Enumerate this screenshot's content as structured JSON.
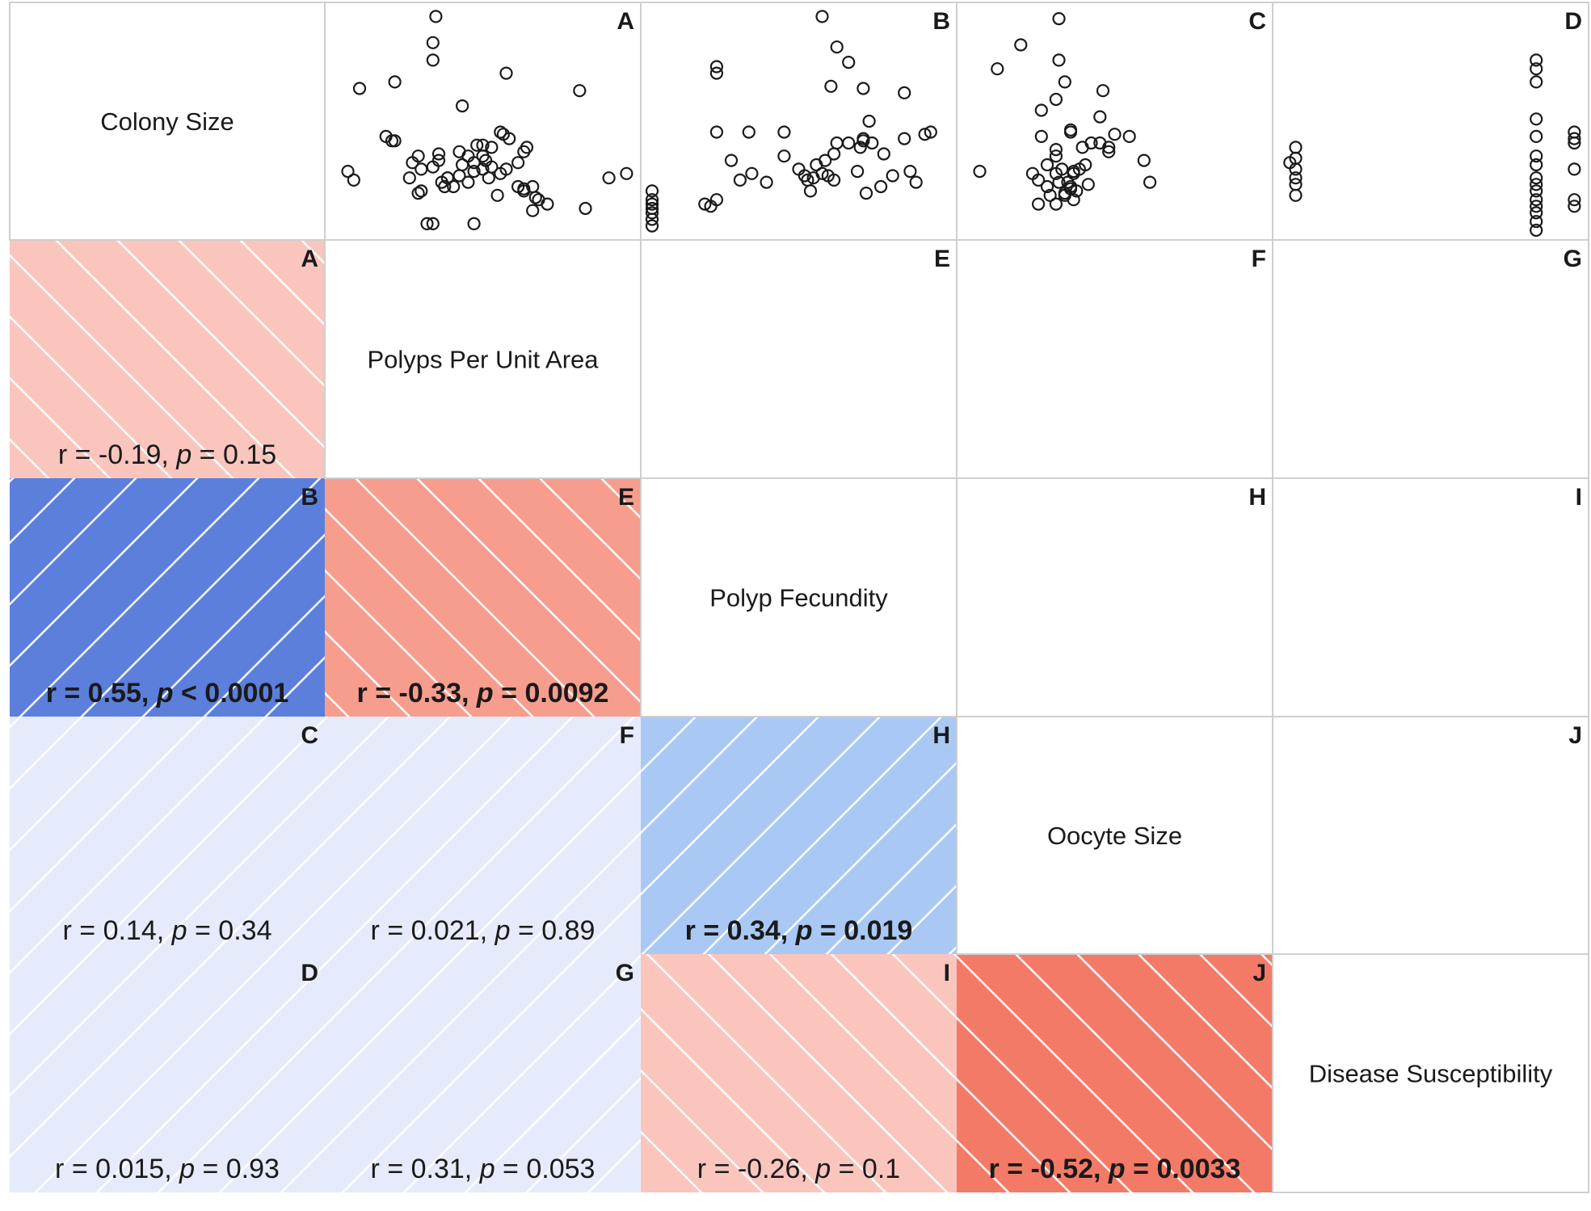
{
  "chart_data": {
    "type": "correlation-matrix",
    "variables": [
      "Colony Size",
      "Polyps Per Unit Area",
      "Polyp Fecundity",
      "Oocyte Size",
      "Disease Susceptibility"
    ],
    "variable_labels": [
      [
        "Colony",
        "Size"
      ],
      [
        "Polyps",
        "Per",
        "Unit",
        "Area"
      ],
      [
        "Polyp",
        "Fecundity"
      ],
      [
        "Oocyte",
        "Size"
      ],
      [
        "Disease",
        "Susceptibility"
      ]
    ],
    "pairs": [
      {
        "letter": "A",
        "i": 1,
        "j": 0,
        "r": "-0.19",
        "p": "0.15",
        "p_op": "=",
        "significant": false,
        "fill": "#f9c5bd",
        "hatch": "negative"
      },
      {
        "letter": "B",
        "i": 2,
        "j": 0,
        "r": "0.55",
        "p": "0.0001",
        "p_op": "<",
        "significant": true,
        "fill": "#5b7fdb",
        "hatch": "positive"
      },
      {
        "letter": "C",
        "i": 3,
        "j": 0,
        "r": "0.14",
        "p": "0.34",
        "p_op": "=",
        "significant": false,
        "fill": "#e6ebfb",
        "hatch": "positive"
      },
      {
        "letter": "D",
        "i": 4,
        "j": 0,
        "r": "0.015",
        "p": "0.93",
        "p_op": "=",
        "significant": false,
        "fill": "#e6ebfb",
        "hatch": "positive"
      },
      {
        "letter": "E",
        "i": 2,
        "j": 1,
        "r": "-0.33",
        "p": "0.0092",
        "p_op": "=",
        "significant": true,
        "fill": "#f79d8e",
        "hatch": "negative"
      },
      {
        "letter": "F",
        "i": 3,
        "j": 1,
        "r": "0.021",
        "p": "0.89",
        "p_op": "=",
        "significant": false,
        "fill": "#e6ebfb",
        "hatch": "positive"
      },
      {
        "letter": "G",
        "i": 4,
        "j": 1,
        "r": "0.31",
        "p": "0.053",
        "p_op": "=",
        "significant": false,
        "fill": "#e6ebfb",
        "hatch": "positive"
      },
      {
        "letter": "H",
        "i": 3,
        "j": 2,
        "r": "0.34",
        "p": "0.019",
        "p_op": "=",
        "significant": true,
        "fill": "#a9c8f4",
        "hatch": "positive"
      },
      {
        "letter": "I",
        "i": 4,
        "j": 2,
        "r": "-0.26",
        "p": "0.1",
        "p_op": "=",
        "significant": false,
        "fill": "#f9c5bd",
        "hatch": "negative"
      },
      {
        "letter": "J",
        "i": 4,
        "j": 3,
        "r": "-0.52",
        "p": "0.0033",
        "p_op": "=",
        "significant": true,
        "fill": "#f47a68",
        "hatch": "negative"
      }
    ],
    "scatter": {
      "note": "values are relative positions within each scatter panel (0-1), approximate",
      "A": [
        [
          0.04,
          0.73
        ],
        [
          0.06,
          0.77
        ],
        [
          0.08,
          0.35
        ],
        [
          0.2,
          0.32
        ],
        [
          0.17,
          0.57
        ],
        [
          0.19,
          0.59
        ],
        [
          0.2,
          0.59
        ],
        [
          0.28,
          0.83
        ],
        [
          0.29,
          0.82
        ],
        [
          0.25,
          0.76
        ],
        [
          0.26,
          0.69
        ],
        [
          0.28,
          0.66
        ],
        [
          0.29,
          0.72
        ],
        [
          0.33,
          0.71
        ],
        [
          0.35,
          0.68
        ],
        [
          0.37,
          0.8
        ],
        [
          0.31,
          0.97
        ],
        [
          0.33,
          0.97
        ],
        [
          0.36,
          0.78
        ],
        [
          0.38,
          0.76
        ],
        [
          0.4,
          0.8
        ],
        [
          0.42,
          0.75
        ],
        [
          0.43,
          0.7
        ],
        [
          0.42,
          0.64
        ],
        [
          0.45,
          0.66
        ],
        [
          0.47,
          0.69
        ],
        [
          0.47,
          0.73
        ],
        [
          0.48,
          0.61
        ],
        [
          0.5,
          0.66
        ],
        [
          0.5,
          0.72
        ],
        [
          0.51,
          0.68
        ],
        [
          0.52,
          0.76
        ],
        [
          0.53,
          0.71
        ],
        [
          0.55,
          0.84
        ],
        [
          0.56,
          0.74
        ],
        [
          0.58,
          0.72
        ],
        [
          0.62,
          0.69
        ],
        [
          0.62,
          0.8
        ],
        [
          0.64,
          0.81
        ],
        [
          0.64,
          0.82
        ],
        [
          0.67,
          0.8
        ],
        [
          0.68,
          0.85
        ],
        [
          0.67,
          0.91
        ],
        [
          0.69,
          0.86
        ],
        [
          0.57,
          0.56
        ],
        [
          0.59,
          0.58
        ],
        [
          0.64,
          0.64
        ],
        [
          0.65,
          0.62
        ],
        [
          0.43,
          0.43
        ],
        [
          0.35,
          0.65
        ],
        [
          0.38,
          0.76
        ],
        [
          0.45,
          0.78
        ],
        [
          0.5,
          0.61
        ],
        [
          0.53,
          0.62
        ],
        [
          0.56,
          0.55
        ],
        [
          0.58,
          0.28
        ],
        [
          0.72,
          0.88
        ],
        [
          0.85,
          0.9
        ],
        [
          0.83,
          0.36
        ],
        [
          0.93,
          0.76
        ],
        [
          0.99,
          0.74
        ],
        [
          0.34,
          0.02
        ],
        [
          0.33,
          0.14
        ],
        [
          0.33,
          0.22
        ],
        [
          0.47,
          0.97
        ]
      ],
      "B": [
        [
          0.0,
          0.82
        ],
        [
          0.0,
          0.86
        ],
        [
          0.0,
          0.88
        ],
        [
          0.0,
          0.9
        ],
        [
          0.0,
          0.92
        ],
        [
          0.0,
          0.95
        ],
        [
          0.0,
          0.98
        ],
        [
          0.18,
          0.88
        ],
        [
          0.2,
          0.89
        ],
        [
          0.22,
          0.86
        ],
        [
          0.22,
          0.25
        ],
        [
          0.22,
          0.55
        ],
        [
          0.27,
          0.68
        ],
        [
          0.3,
          0.77
        ],
        [
          0.33,
          0.55
        ],
        [
          0.34,
          0.74
        ],
        [
          0.39,
          0.78
        ],
        [
          0.45,
          0.66
        ],
        [
          0.5,
          0.72
        ],
        [
          0.52,
          0.75
        ],
        [
          0.53,
          0.77
        ],
        [
          0.54,
          0.82
        ],
        [
          0.55,
          0.76
        ],
        [
          0.56,
          0.7
        ],
        [
          0.58,
          0.74
        ],
        [
          0.59,
          0.68
        ],
        [
          0.6,
          0.75
        ],
        [
          0.62,
          0.65
        ],
        [
          0.62,
          0.77
        ],
        [
          0.63,
          0.6
        ],
        [
          0.67,
          0.6
        ],
        [
          0.7,
          0.73
        ],
        [
          0.71,
          0.62
        ],
        [
          0.72,
          0.59
        ],
        [
          0.73,
          0.83
        ],
        [
          0.74,
          0.5
        ],
        [
          0.75,
          0.6
        ],
        [
          0.78,
          0.8
        ],
        [
          0.79,
          0.65
        ],
        [
          0.82,
          0.75
        ],
        [
          0.86,
          0.58
        ],
        [
          0.88,
          0.73
        ],
        [
          0.9,
          0.78
        ],
        [
          0.93,
          0.56
        ],
        [
          0.95,
          0.55
        ],
        [
          0.58,
          0.02
        ],
        [
          0.63,
          0.16
        ],
        [
          0.67,
          0.23
        ],
        [
          0.61,
          0.34
        ],
        [
          0.72,
          0.35
        ],
        [
          0.86,
          0.37
        ],
        [
          0.22,
          0.28
        ],
        [
          0.72,
          0.58
        ],
        [
          0.45,
          0.55
        ]
      ],
      "C": [
        [
          0.04,
          0.73
        ],
        [
          0.1,
          0.26
        ],
        [
          0.18,
          0.15
        ],
        [
          0.25,
          0.45
        ],
        [
          0.25,
          0.57
        ],
        [
          0.3,
          0.4
        ],
        [
          0.3,
          0.66
        ],
        [
          0.32,
          0.72
        ],
        [
          0.33,
          0.84
        ],
        [
          0.27,
          0.8
        ],
        [
          0.22,
          0.74
        ],
        [
          0.24,
          0.77
        ],
        [
          0.27,
          0.7
        ],
        [
          0.3,
          0.74
        ],
        [
          0.31,
          0.78
        ],
        [
          0.34,
          0.78
        ],
        [
          0.35,
          0.81
        ],
        [
          0.36,
          0.86
        ],
        [
          0.37,
          0.82
        ],
        [
          0.36,
          0.74
        ],
        [
          0.38,
          0.72
        ],
        [
          0.39,
          0.62
        ],
        [
          0.4,
          0.7
        ],
        [
          0.41,
          0.79
        ],
        [
          0.42,
          0.6
        ],
        [
          0.35,
          0.54
        ],
        [
          0.45,
          0.6
        ],
        [
          0.48,
          0.62
        ],
        [
          0.48,
          0.64
        ],
        [
          0.5,
          0.56
        ],
        [
          0.55,
          0.57
        ],
        [
          0.6,
          0.68
        ],
        [
          0.62,
          0.78
        ],
        [
          0.46,
          0.36
        ],
        [
          0.45,
          0.48
        ],
        [
          0.3,
          0.63
        ],
        [
          0.33,
          0.83
        ],
        [
          0.35,
          0.8
        ],
        [
          0.3,
          0.88
        ],
        [
          0.28,
          0.84
        ],
        [
          0.24,
          0.88
        ],
        [
          0.33,
          0.32
        ],
        [
          0.31,
          0.03
        ],
        [
          0.31,
          0.22
        ],
        [
          0.35,
          0.55
        ],
        [
          0.36,
          0.73
        ]
      ],
      "D": [
        [
          0.02,
          0.69
        ],
        [
          0.04,
          0.62
        ],
        [
          0.04,
          0.67
        ],
        [
          0.04,
          0.72
        ],
        [
          0.04,
          0.76
        ],
        [
          0.04,
          0.79
        ],
        [
          0.04,
          0.84
        ],
        [
          0.86,
          0.22
        ],
        [
          0.86,
          0.26
        ],
        [
          0.86,
          0.32
        ],
        [
          0.86,
          0.49
        ],
        [
          0.86,
          0.66
        ],
        [
          0.86,
          0.7
        ],
        [
          0.86,
          0.76
        ],
        [
          0.86,
          0.79
        ],
        [
          0.86,
          0.82
        ],
        [
          0.86,
          0.86
        ],
        [
          0.86,
          0.89
        ],
        [
          0.86,
          0.92
        ],
        [
          0.86,
          0.96
        ],
        [
          0.86,
          1.0
        ],
        [
          0.86,
          0.57
        ],
        [
          0.99,
          0.55
        ],
        [
          0.99,
          0.58
        ],
        [
          0.99,
          0.6
        ],
        [
          0.99,
          0.72
        ],
        [
          0.99,
          0.86
        ],
        [
          0.99,
          0.89
        ]
      ]
    }
  }
}
